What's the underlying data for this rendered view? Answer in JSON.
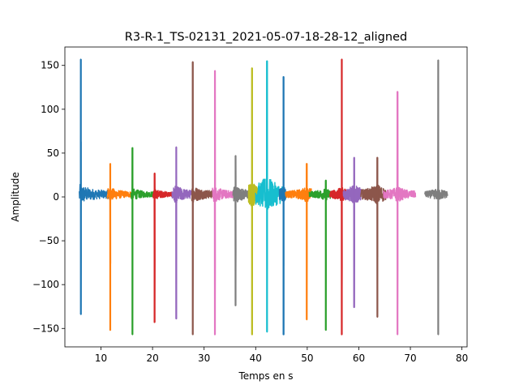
{
  "chart_data": {
    "type": "line",
    "title": "R3-R-1_TS-02131_2021-05-07-18-28-12_aligned",
    "xlabel": "Temps en s",
    "ylabel": "Amplitude",
    "xlim": [
      3,
      81
    ],
    "ylim": [
      -171,
      171
    ],
    "xticks": [
      10,
      20,
      30,
      40,
      50,
      60,
      70,
      80
    ],
    "yticks": [
      -150,
      -100,
      -50,
      0,
      50,
      100,
      150
    ],
    "grid": false,
    "legend": "none",
    "series": [
      {
        "color": "#1f77b4",
        "x_start": 5.8,
        "x_end": 12.2,
        "spike_x": 6.1,
        "spike_max": 157,
        "spike_min": -134,
        "noise": 12
      },
      {
        "color": "#ff7f0e",
        "x_start": 11.2,
        "x_end": 16.0,
        "spike_x": 11.8,
        "spike_max": 38,
        "spike_min": -152,
        "noise": 8
      },
      {
        "color": "#2ca02c",
        "x_start": 15.8,
        "x_end": 20.6,
        "spike_x": 16.1,
        "spike_max": 56,
        "spike_min": -157,
        "noise": 7
      },
      {
        "color": "#d62728",
        "x_start": 20.1,
        "x_end": 24.0,
        "spike_x": 20.4,
        "spike_max": 27,
        "spike_min": -143,
        "noise": 6
      },
      {
        "color": "#9467bd",
        "x_start": 23.8,
        "x_end": 27.8,
        "spike_x": 24.6,
        "spike_max": 57,
        "spike_min": -139,
        "noise": 10
      },
      {
        "color": "#8c564b",
        "x_start": 27.6,
        "x_end": 31.6,
        "spike_x": 27.8,
        "spike_max": 154,
        "spike_min": -157,
        "noise": 10
      },
      {
        "color": "#e377c2",
        "x_start": 31.6,
        "x_end": 35.8,
        "spike_x": 32.1,
        "spike_max": 144,
        "spike_min": -157,
        "noise": 9
      },
      {
        "color": "#7f7f7f",
        "x_start": 35.6,
        "x_end": 39.4,
        "spike_x": 36.1,
        "spike_max": 47,
        "spike_min": -124,
        "noise": 10
      },
      {
        "color": "#bcbd22",
        "x_start": 38.6,
        "x_end": 40.8,
        "spike_x": 39.3,
        "spike_max": 147,
        "spike_min": -157,
        "noise": 14
      },
      {
        "color": "#17becf",
        "x_start": 40.0,
        "x_end": 45.6,
        "spike_x": 42.2,
        "spike_max": 155,
        "spike_min": -154,
        "noise": 22
      },
      {
        "color": "#1f77b4",
        "x_start": 44.6,
        "x_end": 45.8,
        "spike_x": 45.4,
        "spike_max": 137,
        "spike_min": -157,
        "noise": 8
      },
      {
        "color": "#ff7f0e",
        "x_start": 45.8,
        "x_end": 50.8,
        "spike_x": 49.9,
        "spike_max": 38,
        "spike_min": -140,
        "noise": 9
      },
      {
        "color": "#2ca02c",
        "x_start": 50.4,
        "x_end": 54.6,
        "spike_x": 53.6,
        "spike_max": 19,
        "spike_min": -152,
        "noise": 7
      },
      {
        "color": "#d62728",
        "x_start": 54.4,
        "x_end": 57.6,
        "spike_x": 56.7,
        "spike_max": 157,
        "spike_min": -157,
        "noise": 8
      },
      {
        "color": "#9467bd",
        "x_start": 57.0,
        "x_end": 60.4,
        "spike_x": 59.1,
        "spike_max": 45,
        "spike_min": -126,
        "noise": 11
      },
      {
        "color": "#8c564b",
        "x_start": 60.4,
        "x_end": 65.2,
        "spike_x": 63.6,
        "spike_max": 45,
        "spike_min": -137,
        "noise": 12
      },
      {
        "color": "#e377c2",
        "x_start": 64.8,
        "x_end": 71.0,
        "spike_x": 67.5,
        "spike_max": 120,
        "spike_min": -157,
        "noise": 9
      },
      {
        "color": "#7f7f7f",
        "x_start": 72.8,
        "x_end": 77.2,
        "spike_x": 75.4,
        "spike_max": 156,
        "spike_min": -157,
        "noise": 7
      }
    ]
  }
}
